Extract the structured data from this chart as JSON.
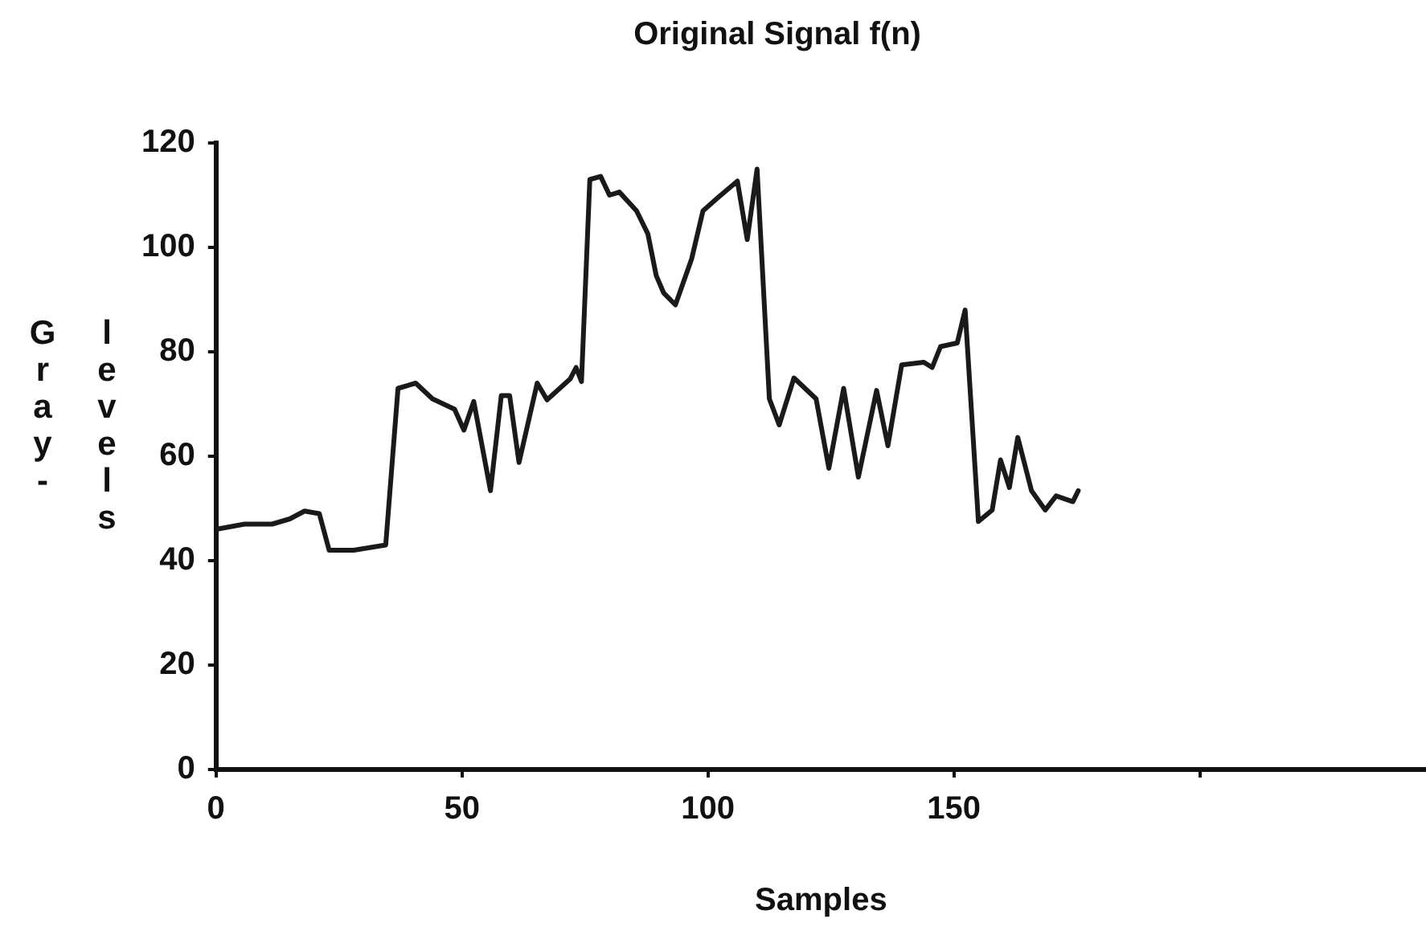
{
  "chart_data": {
    "type": "line",
    "title": "Original Signal f(n)",
    "xlabel": "Samples",
    "ylabel": "Gray-levels",
    "series": [
      {
        "color": "#1a1a1a",
        "x": [
          0,
          5.8,
          11.4,
          15,
          18,
          21,
          23,
          28,
          34.5,
          37,
          40.6,
          44,
          48.5,
          50.4,
          52.4,
          55.8,
          58,
          59.7,
          61.6,
          65.3,
          67.3,
          72,
          73.2,
          74.3,
          76,
          78.2,
          80,
          82,
          85.5,
          87.8,
          89.5,
          91,
          93.4,
          96.7,
          99,
          102,
          106,
          108,
          110,
          112.5,
          114.5,
          117.5,
          122,
          124.6,
          127.6,
          130.6,
          134.3,
          136.6,
          139.4,
          143.9,
          145.6,
          147.3,
          150.7,
          152.3,
          155,
          157.8,
          159.5,
          161.3,
          163,
          165.8,
          168.6,
          170.8,
          174.2,
          175.3
        ],
        "values": [
          46,
          47,
          47,
          48,
          49.5,
          49,
          42,
          42,
          43,
          73,
          74,
          71,
          69,
          65,
          70.5,
          53.4,
          71.6,
          71.6,
          58.8,
          74,
          70.8,
          74.8,
          77,
          74.3,
          113,
          113.6,
          110,
          110.6,
          107,
          102.6,
          94.6,
          91.3,
          89,
          97.8,
          107,
          109.5,
          112.7,
          101.5,
          115,
          71,
          66,
          75,
          71,
          57.7,
          73,
          56,
          72.6,
          62,
          77.5,
          78,
          77,
          81,
          81.7,
          88,
          47.5,
          49.7,
          59.3,
          54,
          63.6,
          53.4,
          49.7,
          52.4,
          51.3,
          53.4
        ]
      }
    ],
    "xlim": [
      0,
      246
    ],
    "xticks": [
      0,
      50,
      100,
      150,
      {
        "value": 200,
        "label": null
      }
    ],
    "ylim": [
      0,
      120
    ],
    "yticks": [
      0,
      20,
      40,
      60,
      80,
      100,
      120
    ],
    "grid": false,
    "legend": false,
    "marker": "none",
    "line_style": "solid"
  }
}
